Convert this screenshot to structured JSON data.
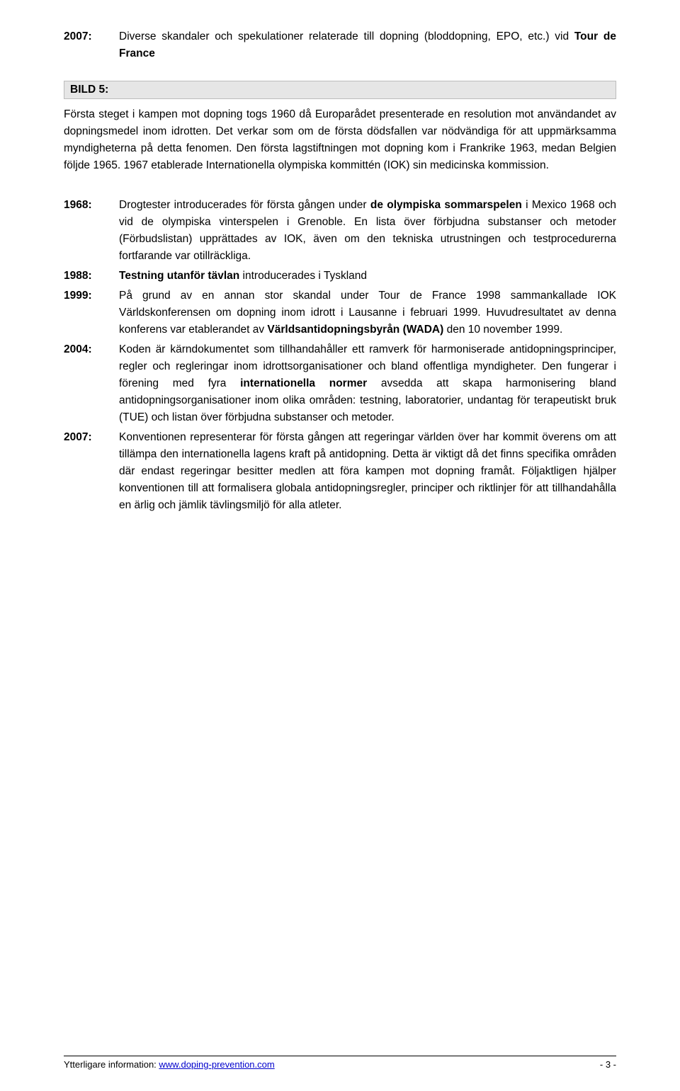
{
  "entry2007a": {
    "year": "2007:",
    "text_pre": "Diverse skandaler och spekulationer relaterade till dopning (bloddopning, EPO, etc.) vid ",
    "bold": "Tour de France"
  },
  "bild5": {
    "label": "BILD 5:"
  },
  "bild5_para": {
    "text": "Första steget i kampen mot dopning togs 1960 då Europarådet presenterade en resolution mot användandet av dopningsmedel inom idrotten. Det verkar som om de första dödsfallen var nödvändiga för att uppmärksamma myndigheterna på detta fenomen. Den första lagstiftningen mot dopning kom i Frankrike 1963, medan Belgien följde 1965. 1967 etablerade Internationella olympiska kommittén (IOK) sin medicinska kommission."
  },
  "entry1968": {
    "year": "1968:",
    "p1": "Drogtester introducerades för första gången under ",
    "b1": "de olympiska sommarspelen",
    "p2": " i Mexico 1968 och vid de olympiska vinterspelen i Grenoble. En lista över förbjudna substanser och metoder (Förbudslistan) upprättades av IOK, även om den tekniska utrustningen och testprocedurerna fortfarande var otillräckliga."
  },
  "entry1988": {
    "year": "1988:",
    "b1": "Testning utanför tävlan",
    "p1": " introducerades i Tyskland"
  },
  "entry1999": {
    "year": "1999:",
    "p1": "På grund av en annan stor skandal under Tour de France 1998 sammankallade IOK Världskonferensen om dopning inom idrott i Lausanne i februari 1999. Huvudresultatet av denna konferens var etablerandet av ",
    "b1": "Världsantidopningsbyrån (WADA)",
    "p2": " den 10 november 1999."
  },
  "entry2004": {
    "year": "2004:",
    "p1": "Koden är kärndokumentet som tillhandahåller ett ramverk för harmoniserade antidopningsprinciper, regler och regleringar inom idrottsorganisationer och bland offentliga myndigheter. Den fungerar i förening med fyra ",
    "b1": "internationella normer",
    "p2": " avsedda att skapa harmonisering bland antidopningsorganisationer inom olika områden: testning, laboratorier, undantag för terapeutiskt bruk (TUE) och listan över förbjudna substanser och metoder."
  },
  "entry2007b": {
    "year": "2007:",
    "p1": "Konventionen representerar för första gången att regeringar världen över har kommit överens om att tillämpa den internationella lagens kraft på antidopning. Detta är viktigt då det finns specifika områden där endast regeringar besitter medlen att föra kampen mot dopning framåt. Följaktligen hjälper konventionen till att formalisera globala antidopningsregler, principer och riktlinjer för att tillhandahålla en ärlig och jämlik tävlingsmiljö för alla atleter."
  },
  "footer": {
    "left_pre": "Ytterligare information: ",
    "link": "www.doping-prevention.com",
    "right": "- 3 -"
  }
}
